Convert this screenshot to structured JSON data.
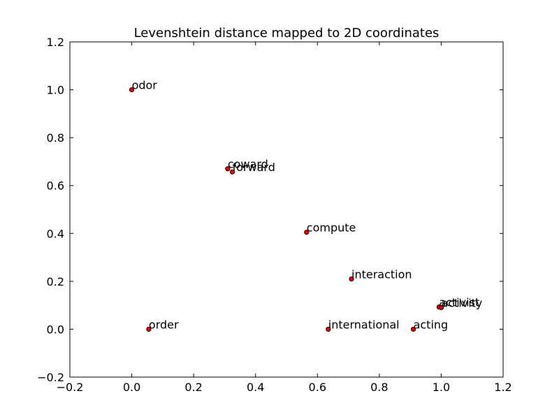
{
  "chart_data": {
    "type": "scatter",
    "title": "Levenshtein distance mapped to 2D coordinates",
    "xlabel": "",
    "ylabel": "",
    "xlim": [
      -0.2,
      1.2
    ],
    "ylim": [
      -0.2,
      1.2
    ],
    "xticks": [
      -0.2,
      0.0,
      0.2,
      0.4,
      0.6,
      0.8,
      1.0,
      1.2
    ],
    "xtick_labels": [
      "−0.2",
      "0.0",
      "0.2",
      "0.4",
      "0.6",
      "0.8",
      "1.0",
      "1.2"
    ],
    "yticks": [
      -0.2,
      0.0,
      0.2,
      0.4,
      0.6,
      0.8,
      1.0,
      1.2
    ],
    "ytick_labels": [
      "−0.2",
      "0.0",
      "0.2",
      "0.4",
      "0.6",
      "0.8",
      "1.0",
      "1.2"
    ],
    "grid": false,
    "marker_color": "#e00000",
    "points": [
      {
        "label": "odor",
        "x": 0.0,
        "y": 1.0
      },
      {
        "label": "coward",
        "x": 0.31,
        "y": 0.67
      },
      {
        "label": "forward",
        "x": 0.325,
        "y": 0.657
      },
      {
        "label": "compute",
        "x": 0.565,
        "y": 0.405
      },
      {
        "label": "interaction",
        "x": 0.71,
        "y": 0.21
      },
      {
        "label": "activist",
        "x": 0.993,
        "y": 0.093
      },
      {
        "label": "activity",
        "x": 1.0,
        "y": 0.09
      },
      {
        "label": "order",
        "x": 0.055,
        "y": 0.0
      },
      {
        "label": "international",
        "x": 0.635,
        "y": 0.0
      },
      {
        "label": "acting",
        "x": 0.91,
        "y": 0.0
      }
    ]
  }
}
